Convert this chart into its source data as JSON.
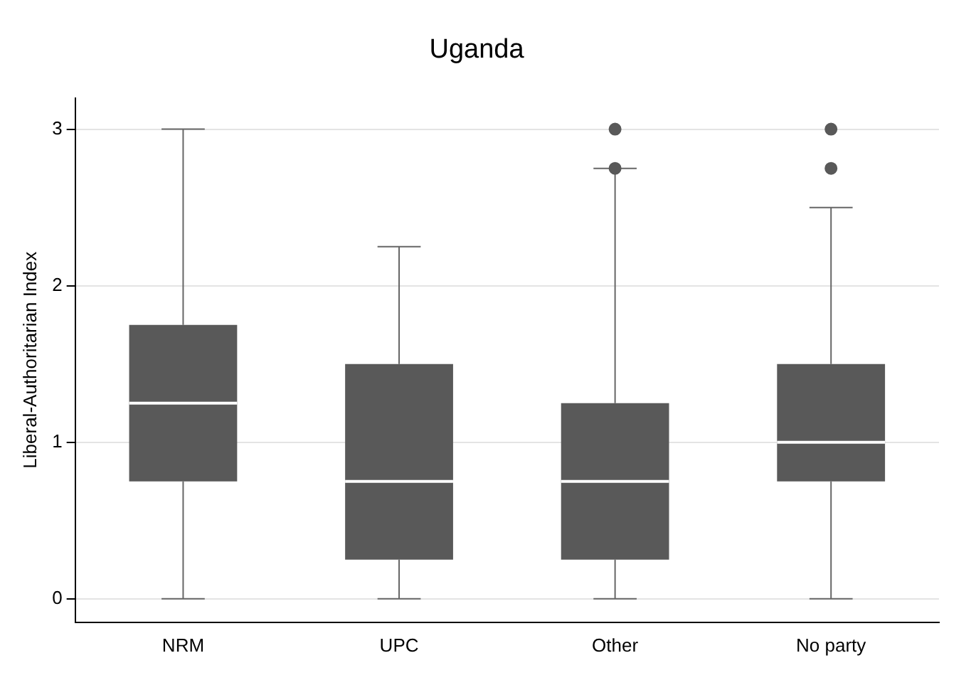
{
  "chart_data": {
    "type": "box",
    "title": "Uganda",
    "ylabel": "Liberal-Authoritarian Index",
    "categories": [
      "NRM",
      "UPC",
      "Other",
      "No party"
    ],
    "boxes": [
      {
        "low": 0,
        "q1": 0.75,
        "median": 1.25,
        "q3": 1.75,
        "high": 3
      },
      {
        "low": 0,
        "q1": 0.25,
        "median": 0.75,
        "q3": 1.5,
        "high": 2.25
      },
      {
        "low": 0,
        "q1": 0.25,
        "median": 0.75,
        "q3": 1.25,
        "high": 2.75,
        "outliers": [
          2.75,
          3
        ]
      },
      {
        "low": 0,
        "q1": 0.75,
        "median": 1,
        "q3": 1.5,
        "high": 2.5,
        "outliers": [
          2.75,
          3
        ]
      }
    ],
    "color": "#595959",
    "ylim": [
      -0.15,
      3.2
    ],
    "yticks": [
      0,
      1,
      2,
      3
    ],
    "grid": "y",
    "legend": false
  }
}
